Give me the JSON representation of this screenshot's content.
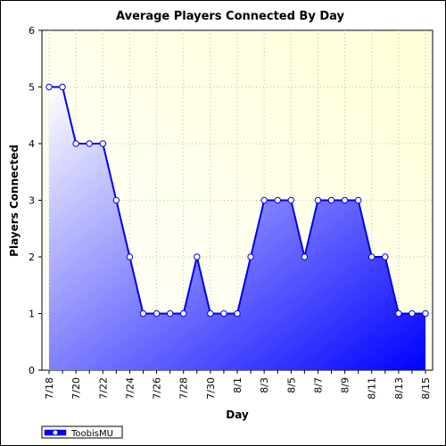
{
  "chart_data": {
    "type": "area",
    "title": "Average Players Connected By Day",
    "xlabel": "Day",
    "ylabel": "Players Connected",
    "ylim": [
      0,
      6
    ],
    "yticks": [
      0,
      1,
      2,
      3,
      4,
      5,
      6
    ],
    "grid": true,
    "legend_position": "bottom-left",
    "x": [
      "7/18",
      "7/19",
      "7/20",
      "7/21",
      "7/22",
      "7/23",
      "7/24",
      "7/25",
      "7/26",
      "7/27",
      "7/28",
      "7/29",
      "7/30",
      "7/31",
      "8/1",
      "8/2",
      "8/3",
      "8/4",
      "8/5",
      "8/6",
      "8/7",
      "8/8",
      "8/9",
      "8/10",
      "8/11",
      "8/12",
      "8/13",
      "8/14",
      "8/15"
    ],
    "xtick_labels": [
      "7/18",
      "7/20",
      "7/22",
      "7/24",
      "7/26",
      "7/28",
      "7/30",
      "8/1",
      "8/3",
      "8/5",
      "8/7",
      "8/9",
      "8/11",
      "8/13",
      "8/15"
    ],
    "series": [
      {
        "name": "ToobisMU",
        "values": [
          5,
          5,
          4,
          4,
          4,
          3,
          2,
          1,
          1,
          1,
          1,
          2,
          1,
          1,
          1,
          2,
          3,
          3,
          3,
          2,
          3,
          3,
          3,
          3,
          2,
          2,
          1,
          1,
          1
        ]
      }
    ],
    "colors": {
      "line": "#0000ee",
      "fill_start": "#ffffff",
      "fill_end": "#0000ff",
      "background_start": "#fbfbe8",
      "background_end": "#ffffd8",
      "grid": "#bdbd9a"
    }
  }
}
